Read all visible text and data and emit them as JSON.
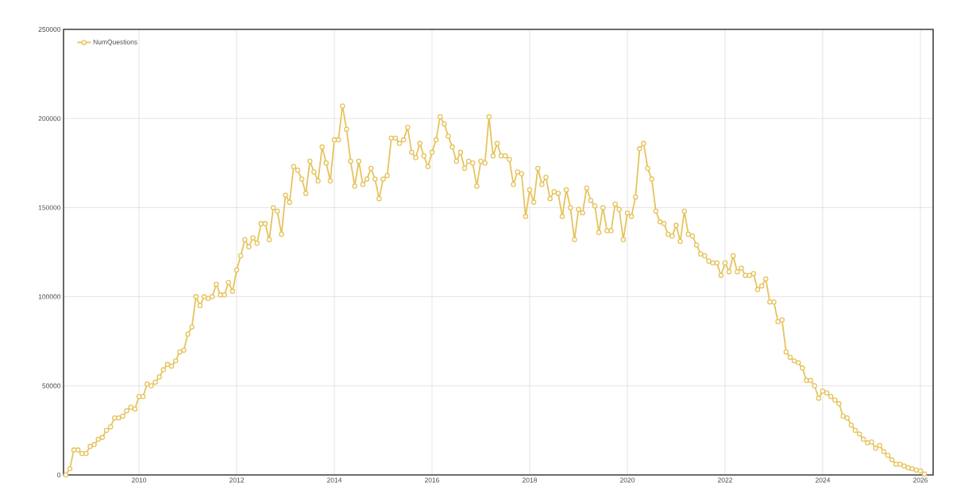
{
  "chart_data": {
    "type": "line",
    "x": [
      "2008-07",
      "2008-08",
      "2008-09",
      "2008-10",
      "2008-11",
      "2008-12",
      "2009-01",
      "2009-02",
      "2009-03",
      "2009-04",
      "2009-05",
      "2009-06",
      "2009-07",
      "2009-08",
      "2009-09",
      "2009-10",
      "2009-11",
      "2009-12",
      "2010-01",
      "2010-02",
      "2010-03",
      "2010-04",
      "2010-05",
      "2010-06",
      "2010-07",
      "2010-08",
      "2010-09",
      "2010-10",
      "2010-11",
      "2010-12",
      "2011-01",
      "2011-02",
      "2011-03",
      "2011-04",
      "2011-05",
      "2011-06",
      "2011-07",
      "2011-08",
      "2011-09",
      "2011-10",
      "2011-11",
      "2011-12",
      "2012-01",
      "2012-02",
      "2012-03",
      "2012-04",
      "2012-05",
      "2012-06",
      "2012-07",
      "2012-08",
      "2012-09",
      "2012-10",
      "2012-11",
      "2012-12",
      "2013-01",
      "2013-02",
      "2013-03",
      "2013-04",
      "2013-05",
      "2013-06",
      "2013-07",
      "2013-08",
      "2013-09",
      "2013-10",
      "2013-11",
      "2013-12",
      "2014-01",
      "2014-02",
      "2014-03",
      "2014-04",
      "2014-05",
      "2014-06",
      "2014-07",
      "2014-08",
      "2014-09",
      "2014-10",
      "2014-11",
      "2014-12",
      "2015-01",
      "2015-02",
      "2015-03",
      "2015-04",
      "2015-05",
      "2015-06",
      "2015-07",
      "2015-08",
      "2015-09",
      "2015-10",
      "2015-11",
      "2015-12",
      "2016-01",
      "2016-02",
      "2016-03",
      "2016-04",
      "2016-05",
      "2016-06",
      "2016-07",
      "2016-08",
      "2016-09",
      "2016-10",
      "2016-11",
      "2016-12",
      "2017-01",
      "2017-02",
      "2017-03",
      "2017-04",
      "2017-05",
      "2017-06",
      "2017-07",
      "2017-08",
      "2017-09",
      "2017-10",
      "2017-11",
      "2017-12",
      "2018-01",
      "2018-02",
      "2018-03",
      "2018-04",
      "2018-05",
      "2018-06",
      "2018-07",
      "2018-08",
      "2018-09",
      "2018-10",
      "2018-11",
      "2018-12",
      "2019-01",
      "2019-02",
      "2019-03",
      "2019-04",
      "2019-05",
      "2019-06",
      "2019-07",
      "2019-08",
      "2019-09",
      "2019-10",
      "2019-11",
      "2019-12",
      "2020-01",
      "2020-02",
      "2020-03",
      "2020-04",
      "2020-05",
      "2020-06",
      "2020-07",
      "2020-08",
      "2020-09",
      "2020-10",
      "2020-11",
      "2020-12",
      "2021-01",
      "2021-02",
      "2021-03",
      "2021-04",
      "2021-05",
      "2021-06",
      "2021-07",
      "2021-08",
      "2021-09",
      "2021-10",
      "2021-11",
      "2021-12",
      "2022-01",
      "2022-02",
      "2022-03",
      "2022-04",
      "2022-05",
      "2022-06",
      "2022-07",
      "2022-08",
      "2022-09",
      "2022-10",
      "2022-11",
      "2022-12",
      "2023-01",
      "2023-02",
      "2023-03",
      "2023-04",
      "2023-05",
      "2023-06",
      "2023-07",
      "2023-08",
      "2023-09",
      "2023-10",
      "2023-11",
      "2023-12",
      "2024-01",
      "2024-02",
      "2024-03",
      "2024-04",
      "2024-05",
      "2024-06",
      "2024-07",
      "2024-08",
      "2024-09",
      "2024-10",
      "2024-11",
      "2024-12",
      "2025-01",
      "2025-02",
      "2025-03",
      "2025-04",
      "2025-05",
      "2025-06",
      "2025-07",
      "2025-08",
      "2025-09",
      "2025-10",
      "2025-11",
      "2025-12",
      "2026-01",
      "2026-02"
    ],
    "series": [
      {
        "name": "NumQuestions",
        "color": "#e6c35c",
        "values": [
          0,
          3500,
          14000,
          14000,
          12000,
          12000,
          16000,
          17000,
          20000,
          21000,
          25000,
          27000,
          32000,
          32000,
          33000,
          36000,
          38000,
          37000,
          44000,
          44000,
          51000,
          50000,
          52000,
          55000,
          59000,
          62000,
          61000,
          64000,
          69000,
          70000,
          79000,
          83000,
          100000,
          95000,
          100000,
          99000,
          100000,
          107000,
          101000,
          101000,
          108000,
          103000,
          115000,
          123000,
          132000,
          128000,
          133000,
          130000,
          141000,
          141000,
          132000,
          150000,
          148000,
          135000,
          157000,
          153000,
          173000,
          171000,
          166000,
          158000,
          176000,
          170000,
          165000,
          184000,
          175000,
          165000,
          188000,
          188000,
          207000,
          194000,
          176000,
          162000,
          176000,
          163000,
          166000,
          172000,
          166000,
          155000,
          166000,
          168000,
          189000,
          189000,
          186000,
          188000,
          195000,
          181000,
          178000,
          186000,
          179000,
          173000,
          181000,
          188000,
          201000,
          197000,
          190000,
          184000,
          176000,
          181000,
          172000,
          176000,
          175000,
          162000,
          176000,
          175000,
          201000,
          179000,
          186000,
          179000,
          179000,
          177000,
          163000,
          170000,
          169000,
          145000,
          160000,
          153000,
          172000,
          163000,
          167000,
          155000,
          159000,
          158000,
          145000,
          160000,
          150000,
          132000,
          149000,
          147000,
          161000,
          154000,
          151000,
          136000,
          150000,
          137000,
          137000,
          152000,
          149000,
          132000,
          147000,
          145000,
          156000,
          183000,
          186000,
          172000,
          166000,
          148000,
          142000,
          141000,
          135000,
          134000,
          140000,
          131000,
          148000,
          135000,
          134000,
          129000,
          124000,
          123000,
          120000,
          119000,
          119000,
          112000,
          119000,
          114000,
          123000,
          114000,
          116000,
          112000,
          112000,
          113000,
          104000,
          106000,
          110000,
          97000,
          97000,
          86000,
          87000,
          69000,
          66000,
          64000,
          63000,
          60000,
          53000,
          53000,
          50000,
          43000,
          47000,
          46000,
          44000,
          42000,
          40000,
          33000,
          32000,
          28000,
          25000,
          23000,
          20000,
          18000,
          18500,
          15000,
          16500,
          13000,
          11000,
          8500,
          6000,
          6000,
          5000,
          4000,
          3500,
          2700,
          2200,
          500
        ]
      }
    ],
    "xlim": [
      "2008-06-15",
      "2026-04-05"
    ],
    "xticks": [
      "2010",
      "2012",
      "2014",
      "2016",
      "2018",
      "2020",
      "2022",
      "2024",
      "2026"
    ],
    "ylim": [
      0,
      250000
    ],
    "yticks": [
      0,
      50000,
      100000,
      150000,
      200000,
      250000
    ],
    "grid": true,
    "legend": "top left",
    "marker": "circle",
    "line_style": "solid"
  }
}
